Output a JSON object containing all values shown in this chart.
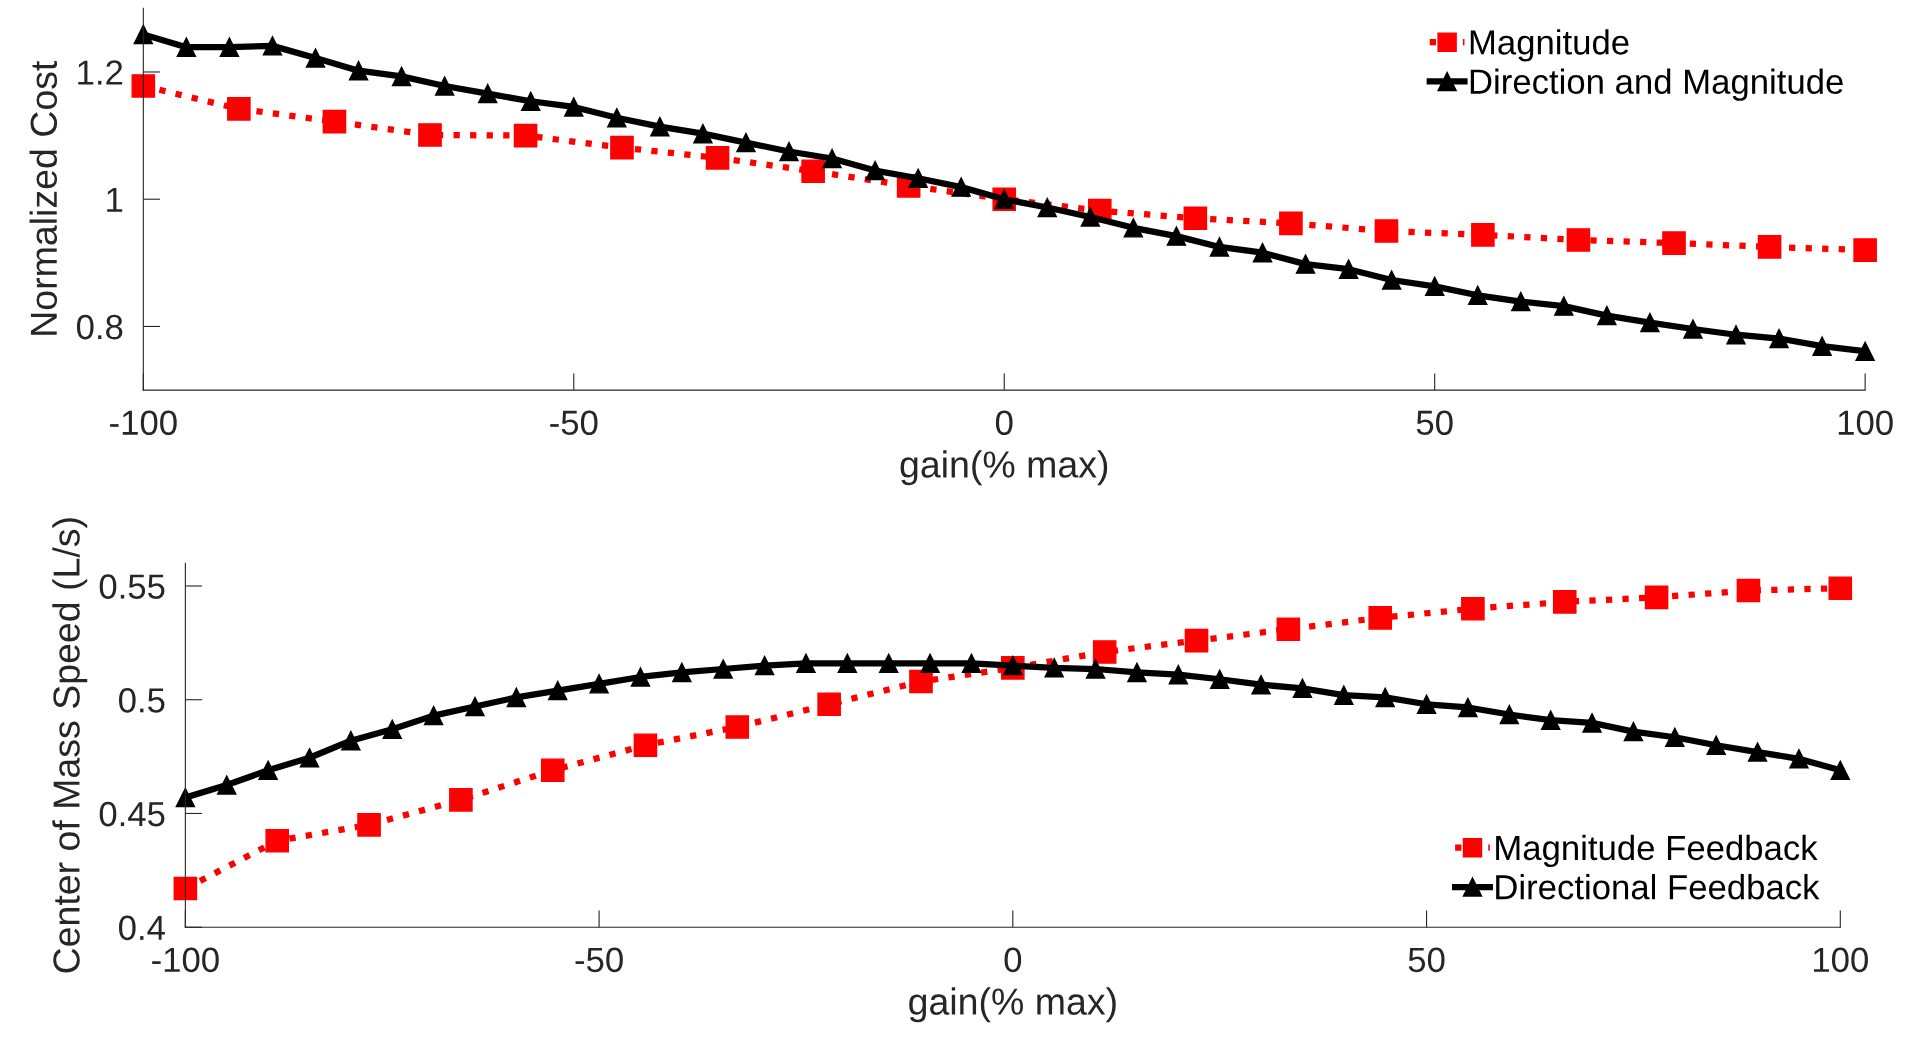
{
  "chart_data": [
    {
      "type": "line",
      "xlabel": "gain(% max)",
      "ylabel": "Normalized Cost",
      "xlim": [
        -100,
        100
      ],
      "ylim": [
        0.7,
        1.3
      ],
      "xticks": [
        -100,
        -50,
        0,
        50,
        100
      ],
      "yticks": [
        0.8,
        1,
        1.2
      ],
      "grid": false,
      "legend": "top right",
      "series": [
        {
          "name": "Magnitude",
          "color": "#ff0000",
          "marker": "square",
          "line_style": "dotted",
          "x": [
            -100,
            -88.9,
            -77.8,
            -66.7,
            -55.6,
            -44.4,
            -33.3,
            -22.2,
            -11.1,
            0,
            11.1,
            22.2,
            33.3,
            44.4,
            55.6,
            66.7,
            77.8,
            88.9,
            100
          ],
          "values": [
            1.178,
            1.142,
            1.122,
            1.101,
            1.1,
            1.081,
            1.065,
            1.044,
            1.021,
            1.0,
            0.982,
            0.97,
            0.962,
            0.95,
            0.944,
            0.936,
            0.931,
            0.925,
            0.92
          ]
        },
        {
          "name": "Direction and Magnitude",
          "color": "#000000",
          "marker": "triangle",
          "line_style": "solid",
          "x": [
            -100,
            -95,
            -90,
            -85,
            -80,
            -75,
            -70,
            -65,
            -60,
            -55,
            -50,
            -45,
            -40,
            -35,
            -30,
            -25,
            -20,
            -15,
            -10,
            -5,
            0,
            5,
            10,
            15,
            20,
            25,
            30,
            35,
            40,
            45,
            50,
            55,
            60,
            65,
            70,
            75,
            80,
            85,
            90,
            95,
            100
          ],
          "values": [
            1.259,
            1.239,
            1.239,
            1.241,
            1.222,
            1.202,
            1.193,
            1.178,
            1.166,
            1.154,
            1.145,
            1.128,
            1.114,
            1.103,
            1.089,
            1.075,
            1.064,
            1.045,
            1.033,
            1.019,
            1.0,
            0.987,
            0.972,
            0.955,
            0.942,
            0.925,
            0.916,
            0.898,
            0.89,
            0.873,
            0.863,
            0.849,
            0.839,
            0.832,
            0.817,
            0.806,
            0.796,
            0.787,
            0.781,
            0.769,
            0.761
          ]
        }
      ]
    },
    {
      "type": "line",
      "xlabel": "gain(% max)",
      "ylabel": "Center of Mass Speed (L/s)",
      "xlim": [
        -100,
        100
      ],
      "ylim": [
        0.4,
        0.56
      ],
      "xticks": [
        -100,
        -50,
        0,
        50,
        100
      ],
      "yticks": [
        0.4,
        0.45,
        0.5,
        0.55
      ],
      "grid": false,
      "legend": "bottom right",
      "series": [
        {
          "name": "Magnitude Feedback",
          "color": "#ff0000",
          "marker": "square",
          "line_style": "dotted",
          "x": [
            -100,
            -88.9,
            -77.8,
            -66.7,
            -55.6,
            -44.4,
            -33.3,
            -22.2,
            -11.1,
            0,
            11.1,
            22.2,
            33.3,
            44.4,
            55.6,
            66.7,
            77.8,
            88.9,
            100
          ],
          "values": [
            0.417,
            0.438,
            0.445,
            0.456,
            0.469,
            0.48,
            0.488,
            0.498,
            0.508,
            0.514,
            0.521,
            0.526,
            0.531,
            0.536,
            0.54,
            0.543,
            0.545,
            0.548,
            0.549
          ]
        },
        {
          "name": "Directional Feedback",
          "color": "#000000",
          "marker": "triangle",
          "line_style": "solid",
          "x": [
            -100,
            -95,
            -90,
            -85,
            -80,
            -75,
            -70,
            -65,
            -60,
            -55,
            -50,
            -45,
            -40,
            -35,
            -30,
            -25,
            -20,
            -15,
            -10,
            -5,
            0,
            5,
            10,
            15,
            20,
            25,
            30,
            35,
            40,
            45,
            50,
            55,
            60,
            65,
            70,
            75,
            80,
            85,
            90,
            95,
            100
          ],
          "values": [
            0.457,
            0.4625,
            0.469,
            0.4745,
            0.482,
            0.487,
            0.493,
            0.497,
            0.501,
            0.504,
            0.507,
            0.51,
            0.512,
            0.5135,
            0.515,
            0.516,
            0.516,
            0.516,
            0.516,
            0.516,
            0.515,
            0.514,
            0.5135,
            0.512,
            0.511,
            0.509,
            0.5066,
            0.505,
            0.502,
            0.501,
            0.498,
            0.4966,
            0.4935,
            0.491,
            0.4898,
            0.486,
            0.4835,
            0.48,
            0.477,
            0.474,
            0.469
          ]
        }
      ]
    }
  ]
}
